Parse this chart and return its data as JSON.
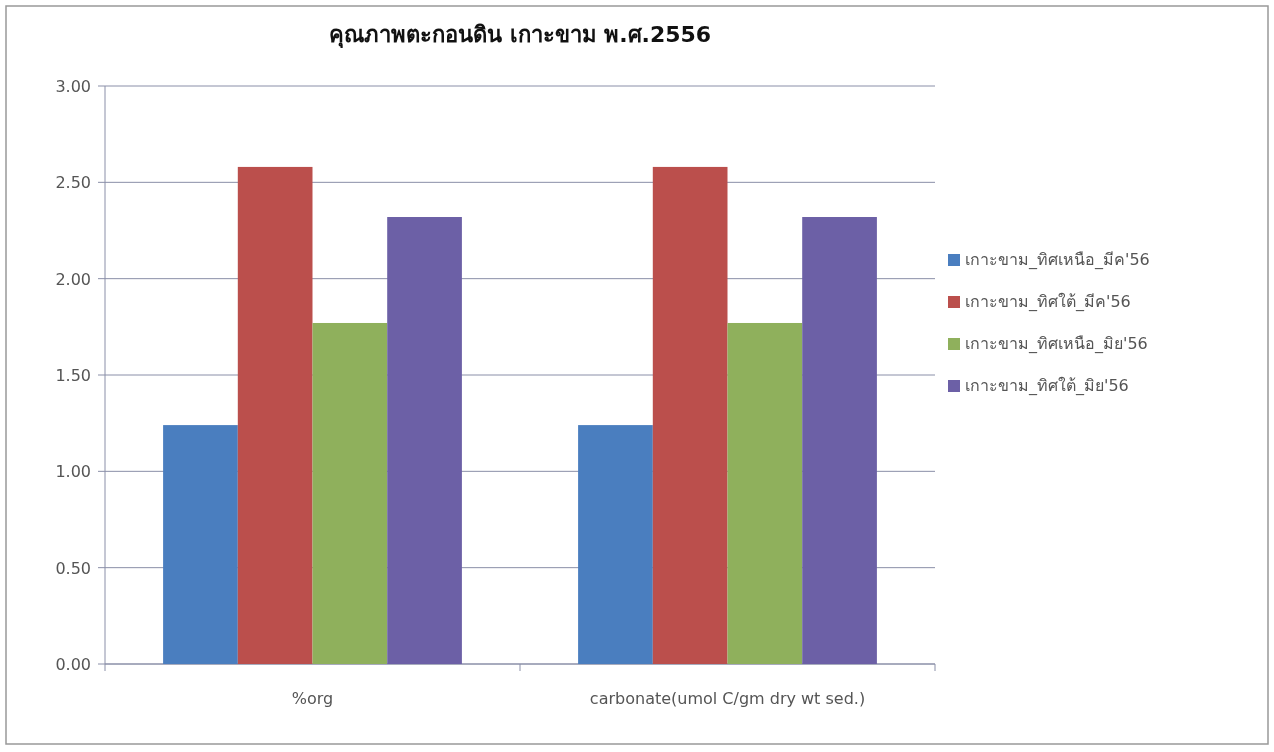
{
  "chart_data": {
    "type": "bar",
    "title": "คุณภาพตะกอนดิน เกาะขาม พ.ศ.2556",
    "categories": [
      "%org",
      "carbonate(umol C/gm dry wt sed.)"
    ],
    "series": [
      {
        "name": "เกาะขาม_ทิศเหนือ_มีค'56",
        "color": "#4a7ebf",
        "values": [
          1.24,
          1.24
        ]
      },
      {
        "name": "เกาะขาม_ทิศใต้_มีค'56",
        "color": "#bb4f4c",
        "values": [
          2.58,
          2.58
        ]
      },
      {
        "name": "เกาะขาม_ทิศเหนือ_มิย'56",
        "color": "#8fb05c",
        "values": [
          1.77,
          1.77
        ]
      },
      {
        "name": "เกาะขาม_ทิศใต้_มิย'56",
        "color": "#6c60a6",
        "values": [
          2.32,
          2.32
        ]
      }
    ],
    "ylim": [
      0,
      3
    ],
    "yticks": [
      {
        "value": 0,
        "label": "0.00"
      },
      {
        "value": 0.5,
        "label": "0.50"
      },
      {
        "value": 1,
        "label": "1.00"
      },
      {
        "value": 1.5,
        "label": "1.50"
      },
      {
        "value": 2,
        "label": "2.00"
      },
      {
        "value": 2.5,
        "label": "2.50"
      },
      {
        "value": 3,
        "label": "3.00"
      }
    ],
    "grid": "y",
    "legend": "right"
  }
}
